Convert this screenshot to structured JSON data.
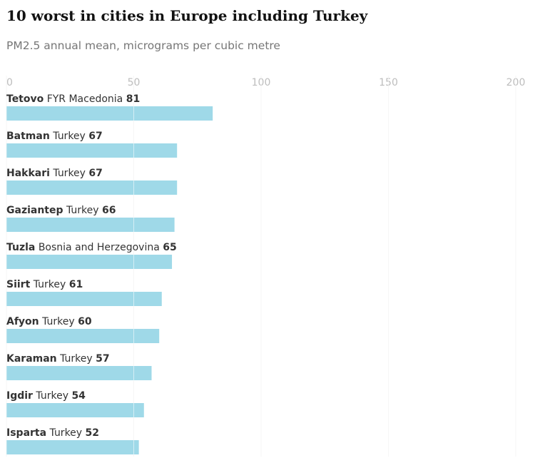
{
  "title": "10 worst in cities in Europe including Turkey",
  "subtitle": "PM2.5 annual mean, micrograms per cubic metre",
  "chart_data": {
    "type": "bar",
    "orientation": "horizontal",
    "title": "10 worst in cities in Europe including Turkey",
    "subtitle": "PM2.5 annual mean, micrograms per cubic metre",
    "xlim": [
      0,
      200
    ],
    "ticks": [
      "0",
      "50",
      "100",
      "150",
      "200"
    ],
    "grid": true,
    "bar_color": "#9fd9e8",
    "grid_color": "#ececec",
    "rows": [
      {
        "city": "Tetovo",
        "country": "FYR Macedonia",
        "value": 81,
        "value_label": "81"
      },
      {
        "city": "Batman",
        "country": "Turkey",
        "value": 67,
        "value_label": "67"
      },
      {
        "city": "Hakkari",
        "country": "Turkey",
        "value": 67,
        "value_label": "67"
      },
      {
        "city": "Gaziantep",
        "country": "Turkey",
        "value": 66,
        "value_label": "66"
      },
      {
        "city": "Tuzla",
        "country": "Bosnia and Herzegovina",
        "value": 65,
        "value_label": "65"
      },
      {
        "city": "Siirt",
        "country": "Turkey",
        "value": 61,
        "value_label": "61"
      },
      {
        "city": "Afyon",
        "country": "Turkey",
        "value": 60,
        "value_label": "60"
      },
      {
        "city": "Karaman",
        "country": "Turkey",
        "value": 57,
        "value_label": "57"
      },
      {
        "city": "Igdir",
        "country": "Turkey",
        "value": 54,
        "value_label": "54"
      },
      {
        "city": "Isparta",
        "country": "Turkey",
        "value": 52,
        "value_label": "52"
      }
    ]
  }
}
